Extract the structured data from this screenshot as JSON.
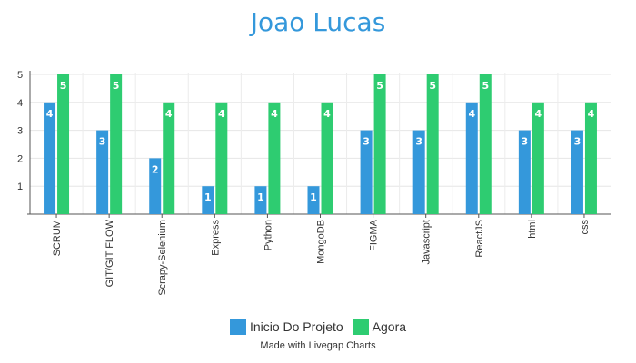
{
  "chart_data": {
    "type": "bar",
    "title": "Joao Lucas",
    "categories": [
      "SCRUM",
      "GIT/GIT FLOW",
      "Scrapy-Selenium",
      "Express",
      "Python",
      "MongoDB",
      "FIGMA",
      "Javascript",
      "ReactJS",
      "html",
      "css"
    ],
    "series": [
      {
        "name": "Inicio Do Projeto",
        "color": "#3498db",
        "values": [
          4,
          3,
          2,
          1,
          1,
          1,
          3,
          3,
          4,
          3,
          3
        ]
      },
      {
        "name": "Agora",
        "color": "#2ecc71",
        "values": [
          5,
          5,
          4,
          4,
          4,
          4,
          5,
          5,
          5,
          4,
          4
        ]
      }
    ],
    "yticks": [
      1,
      2,
      3,
      4,
      5
    ],
    "ylim": [
      0,
      5
    ],
    "grid": true,
    "legend": "bottom-center",
    "data_labels": true
  },
  "credit": "Made with Livegap Charts"
}
